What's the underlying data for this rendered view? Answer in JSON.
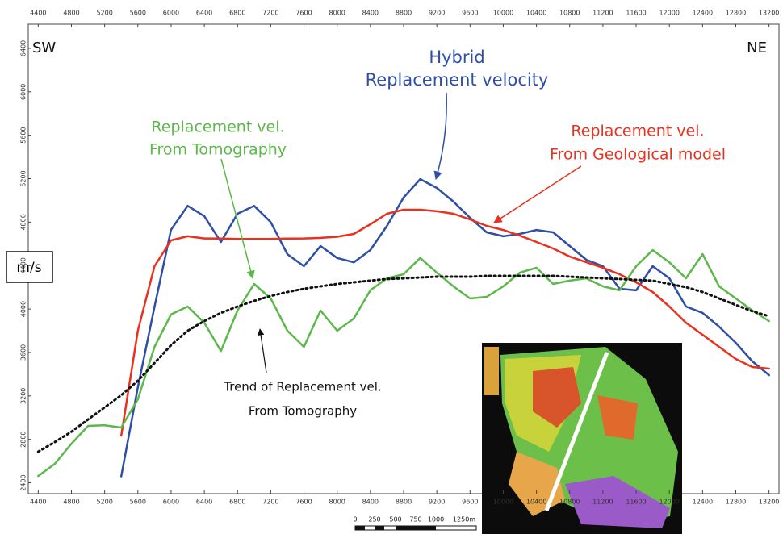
{
  "chart_data": {
    "type": "line",
    "x": [
      4400,
      4600,
      4800,
      5000,
      5200,
      5400,
      5600,
      5800,
      6000,
      6200,
      6400,
      6600,
      6800,
      7000,
      7200,
      7400,
      7600,
      7800,
      8000,
      8200,
      8400,
      8600,
      8800,
      9000,
      9200,
      9400,
      9600,
      9800,
      10000,
      10200,
      10400,
      10600,
      10800,
      11000,
      11200,
      11400,
      11600,
      11800,
      12000,
      12200,
      12400,
      12600,
      12800,
      13000,
      13200
    ],
    "series": [
      {
        "color": "#2f4fa6",
        "dash": false,
        "values": [
          null,
          null,
          null,
          null,
          null,
          2460,
          3280,
          4020,
          4730,
          4950,
          4855,
          4617,
          4877,
          4950,
          4800,
          4505,
          4394,
          4580,
          4470,
          4430,
          4543,
          4766,
          5026,
          5196,
          5115,
          4989,
          4840,
          4706,
          4670,
          4691,
          4728,
          4706,
          4580,
          4454,
          4394,
          4186,
          4172,
          4394,
          4283,
          4023,
          3964,
          3837,
          3689,
          3518,
          3392
        ]
      },
      {
        "color": "#e8311f",
        "dash": false,
        "values": [
          null,
          null,
          null,
          null,
          null,
          2835,
          3800,
          4394,
          4632,
          4670,
          4650,
          4648,
          4645,
          4645,
          4645,
          4648,
          4650,
          4655,
          4665,
          4691,
          4780,
          4877,
          4914,
          4914,
          4900,
          4877,
          4825,
          4766,
          4728,
          4676,
          4617,
          4558,
          4483,
          4431,
          4380,
          4320,
          4246,
          4157,
          4023,
          3874,
          3763,
          3652,
          3540,
          3466,
          3451
        ]
      },
      {
        "color": "#5cb84a",
        "dash": false,
        "values": [
          2463,
          2575,
          2760,
          2924,
          2930,
          2909,
          3169,
          3652,
          3950,
          4023,
          3874,
          3614,
          3986,
          4231,
          4097,
          3800,
          3652,
          3986,
          3800,
          3912,
          4172,
          4283,
          4320,
          4470,
          4335,
          4209,
          4097,
          4112,
          4209,
          4335,
          4380,
          4231,
          4261,
          4283,
          4209,
          4172,
          4394,
          4543,
          4431,
          4283,
          4505,
          4209,
          4097,
          3986,
          3889
        ]
      },
      {
        "color": "#111111",
        "dash": true,
        "values": [
          2686,
          2775,
          2870,
          2983,
          3095,
          3206,
          3340,
          3503,
          3667,
          3800,
          3889,
          3964,
          4023,
          4075,
          4120,
          4157,
          4186,
          4209,
          4231,
          4246,
          4261,
          4276,
          4283,
          4290,
          4298,
          4298,
          4298,
          4305,
          4305,
          4305,
          4305,
          4305,
          4298,
          4290,
          4283,
          4276,
          4268,
          4261,
          4231,
          4201,
          4157,
          4097,
          4038,
          3979,
          3934
        ]
      }
    ],
    "xlim": [
      4280,
      13320
    ],
    "ylim": [
      2300,
      6600
    ],
    "xticks": [
      4400,
      4800,
      5200,
      5600,
      6000,
      6400,
      6800,
      7200,
      7600,
      8000,
      8400,
      8800,
      9200,
      9600,
      10000,
      10400,
      10800,
      11200,
      11600,
      12000,
      12400,
      12800,
      13200
    ],
    "yticks": [
      2400,
      2800,
      3200,
      3600,
      4000,
      4400,
      4800,
      5200,
      5600,
      6000,
      6400
    ],
    "y_label": "m/s",
    "annotations": [
      {
        "text": "SW",
        "color": "#111111"
      },
      {
        "text": "NE",
        "color": "#111111"
      },
      {
        "text": "Hybrid",
        "color": "#2f4fa6"
      },
      {
        "text": "Replacement velocity",
        "color": "#2f4fa6"
      },
      {
        "text": "Replacement vel.",
        "color": "#5cb84a"
      },
      {
        "text": "From Tomography",
        "color": "#5cb84a"
      },
      {
        "text": "Replacement vel.",
        "color": "#e8311f"
      },
      {
        "text": "From Geological model",
        "color": "#e8311f"
      },
      {
        "text": "Trend of Replacement vel.",
        "color": "#111111"
      },
      {
        "text": "From Tomography",
        "color": "#111111"
      }
    ],
    "scale_bar_labels": [
      "0",
      "250",
      "500",
      "750",
      "1000",
      "1250m"
    ]
  }
}
